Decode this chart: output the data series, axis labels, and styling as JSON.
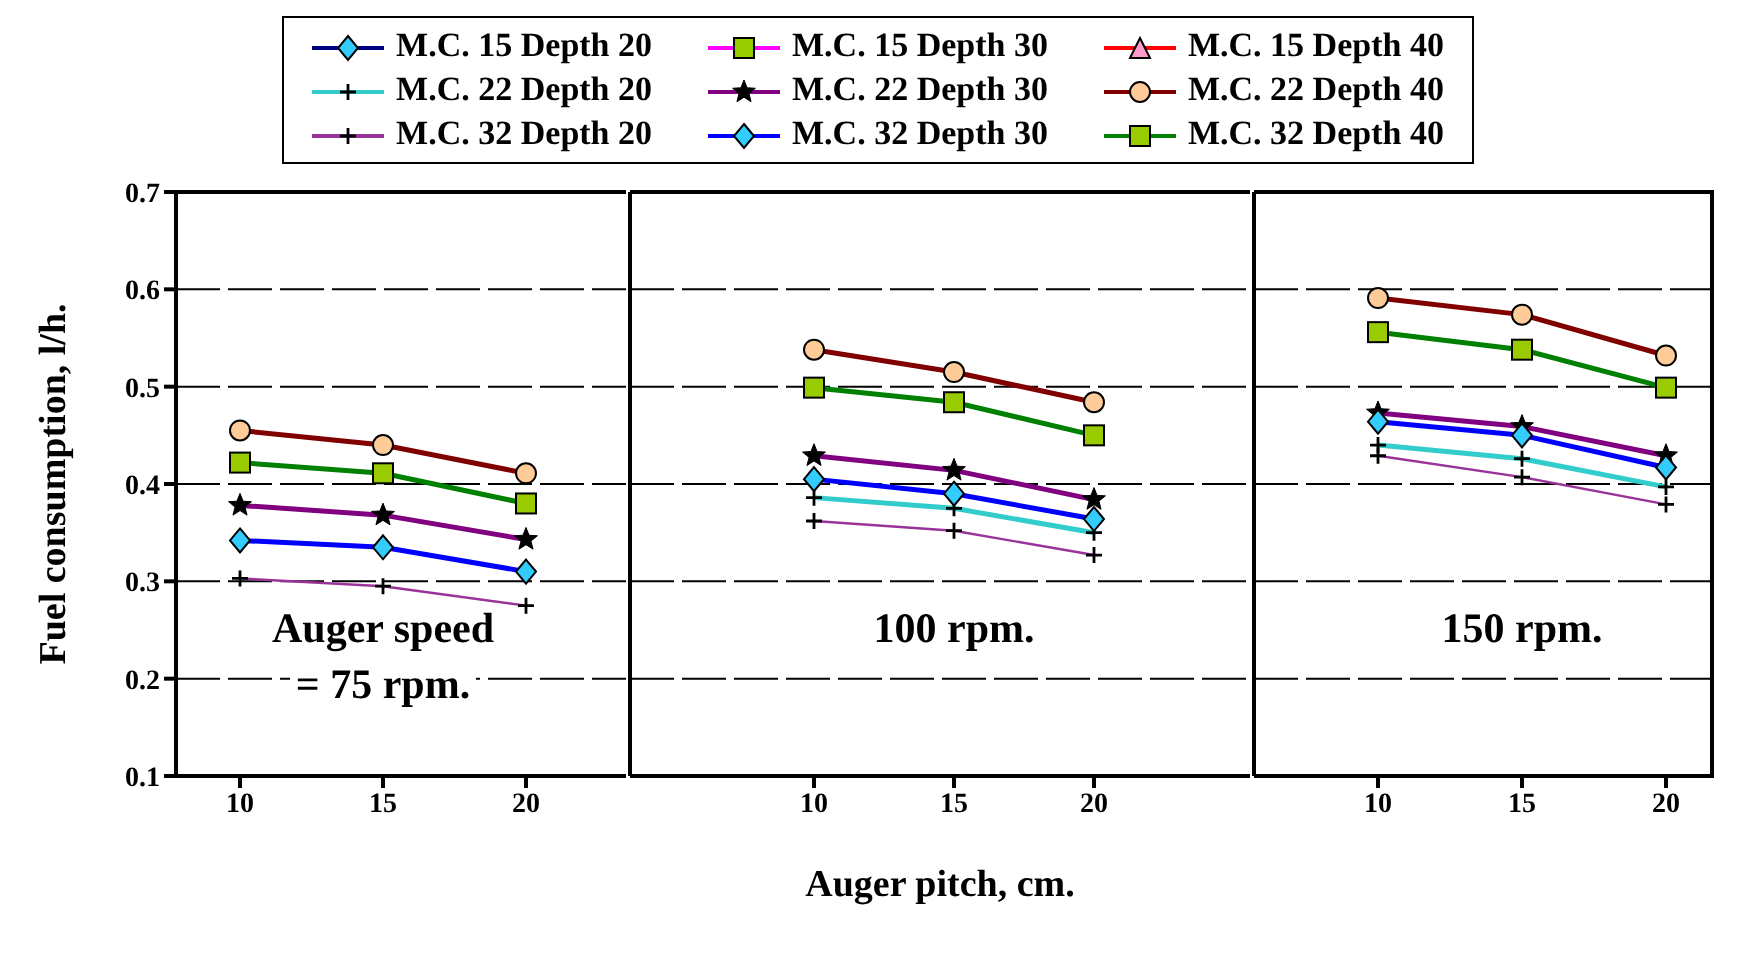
{
  "chart_data": [
    {
      "type": "line",
      "ylabel": "Fuel consumption, l/h.",
      "categories": [
        "10",
        "15",
        "20"
      ],
      "series": [
        {
          "name": "M.C. 15 Depth 20",
          "color": "#000080",
          "marker": "diamond",
          "values": [
            null,
            null,
            null
          ]
        },
        {
          "name": "M.C. 15 Depth 30",
          "color": "#ff00ff",
          "marker": "square",
          "values": [
            null,
            null,
            null
          ]
        },
        {
          "name": "M.C. 15 Depth 40",
          "color": "#ff0000",
          "marker": "triangle",
          "values": [
            null,
            null,
            null
          ]
        },
        {
          "name": "M.C. 22 Depth 20",
          "color": "#33cccc",
          "marker": "cross",
          "values": [
            null,
            null,
            null
          ]
        },
        {
          "name": "M.C. 22 Depth 30",
          "color": "#800080",
          "marker": "star",
          "values": [
            0.378,
            0.368,
            0.343
          ]
        },
        {
          "name": "M.C. 22 Depth 40",
          "color": "#800000",
          "marker": "circle",
          "values": [
            0.455,
            0.44,
            0.411
          ]
        },
        {
          "name": "M.C. 32 Depth 20",
          "color": "#993399",
          "marker": "cross",
          "values": [
            0.303,
            0.295,
            0.275
          ]
        },
        {
          "name": "M.C. 32 Depth 30",
          "color": "#0000ff",
          "marker": "diamond",
          "values": [
            0.342,
            0.335,
            0.31
          ]
        },
        {
          "name": "M.C. 32 Depth 40",
          "color": "#008000",
          "marker": "square",
          "values": [
            0.422,
            0.411,
            0.38
          ]
        }
      ],
      "ylim": [
        0.1,
        0.7
      ],
      "yticks": [
        0.1,
        0.2,
        0.3,
        0.4,
        0.5,
        0.6,
        0.7
      ],
      "grid": "y",
      "legend": "top",
      "annotations": [
        "Auger speed\n= 75 rpm."
      ]
    },
    {
      "type": "line",
      "xlabel": "Auger pitch, cm.",
      "categories": [
        "10",
        "15",
        "20"
      ],
      "series": [
        {
          "color": "#33cccc",
          "marker": "cross",
          "values": [
            0.386,
            0.375,
            0.35
          ]
        },
        {
          "color": "#800080",
          "marker": "star",
          "values": [
            0.429,
            0.414,
            0.384
          ]
        },
        {
          "color": "#800000",
          "marker": "circle",
          "values": [
            0.538,
            0.515,
            0.484
          ]
        },
        {
          "color": "#993399",
          "marker": "cross",
          "values": [
            0.362,
            0.352,
            0.327
          ]
        },
        {
          "color": "#0000ff",
          "marker": "diamond",
          "values": [
            0.405,
            0.39,
            0.364
          ]
        },
        {
          "color": "#008000",
          "marker": "square",
          "values": [
            0.499,
            0.484,
            0.45
          ]
        }
      ],
      "ylim": [
        0.1,
        0.7
      ],
      "yticks": [
        0.1,
        0.2,
        0.3,
        0.4,
        0.5,
        0.6,
        0.7
      ],
      "grid": "y",
      "tick_labels": "x",
      "annotations": [
        "100 rpm."
      ]
    },
    {
      "type": "line",
      "categories": [
        "10",
        "15",
        "20"
      ],
      "series": [
        {
          "color": "#33cccc",
          "marker": "cross",
          "values": [
            0.44,
            0.426,
            0.397
          ]
        },
        {
          "color": "#800080",
          "marker": "star",
          "values": [
            0.473,
            0.459,
            0.429
          ]
        },
        {
          "color": "#800000",
          "marker": "circle",
          "values": [
            0.591,
            0.574,
            0.532
          ]
        },
        {
          "color": "#993399",
          "marker": "cross",
          "values": [
            0.429,
            0.407,
            0.379
          ]
        },
        {
          "color": "#0000ff",
          "marker": "diamond",
          "values": [
            0.464,
            0.45,
            0.417
          ]
        },
        {
          "color": "#008000",
          "marker": "square",
          "values": [
            0.556,
            0.538,
            0.499
          ]
        }
      ],
      "ylim": [
        0.1,
        0.7
      ],
      "yticks": [
        0.1,
        0.2,
        0.3,
        0.4,
        0.5,
        0.6,
        0.7
      ],
      "grid": "y",
      "tick_labels": "x",
      "annotations": [
        "150 rpm."
      ]
    }
  ]
}
